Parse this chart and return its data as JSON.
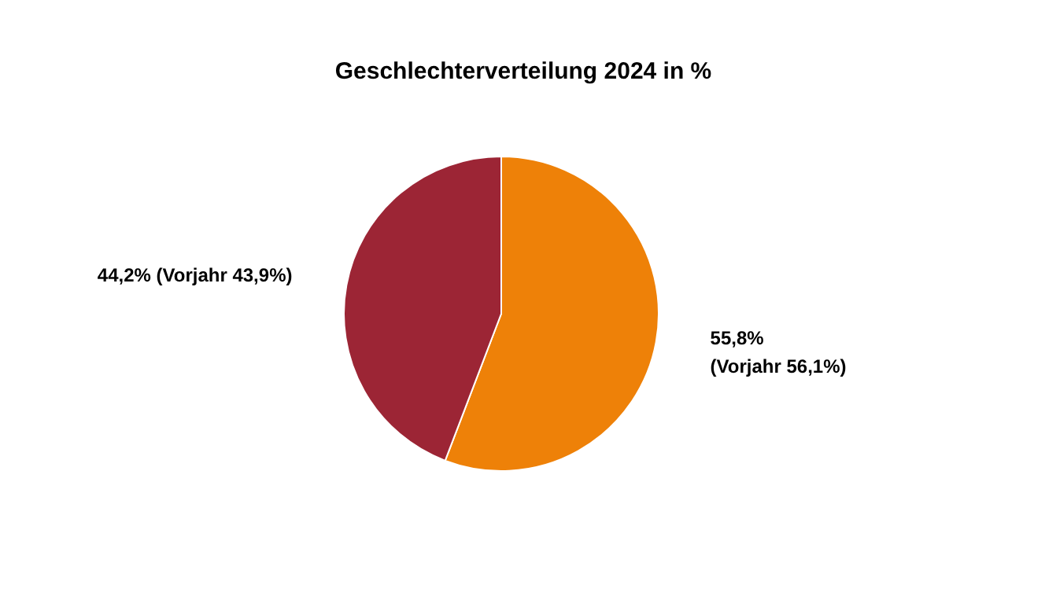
{
  "chart_data": {
    "type": "pie",
    "title": "Geschlechterverteilung 2024 in %",
    "categories": [
      null,
      null
    ],
    "values": [
      55.8,
      44.2
    ],
    "colors": [
      "#ee8108",
      "#9c2535"
    ],
    "value_labels": [
      "55,8%\n(Vorjahr 56,1%)",
      "44,2% (Vorjahr 43,9%)"
    ]
  }
}
